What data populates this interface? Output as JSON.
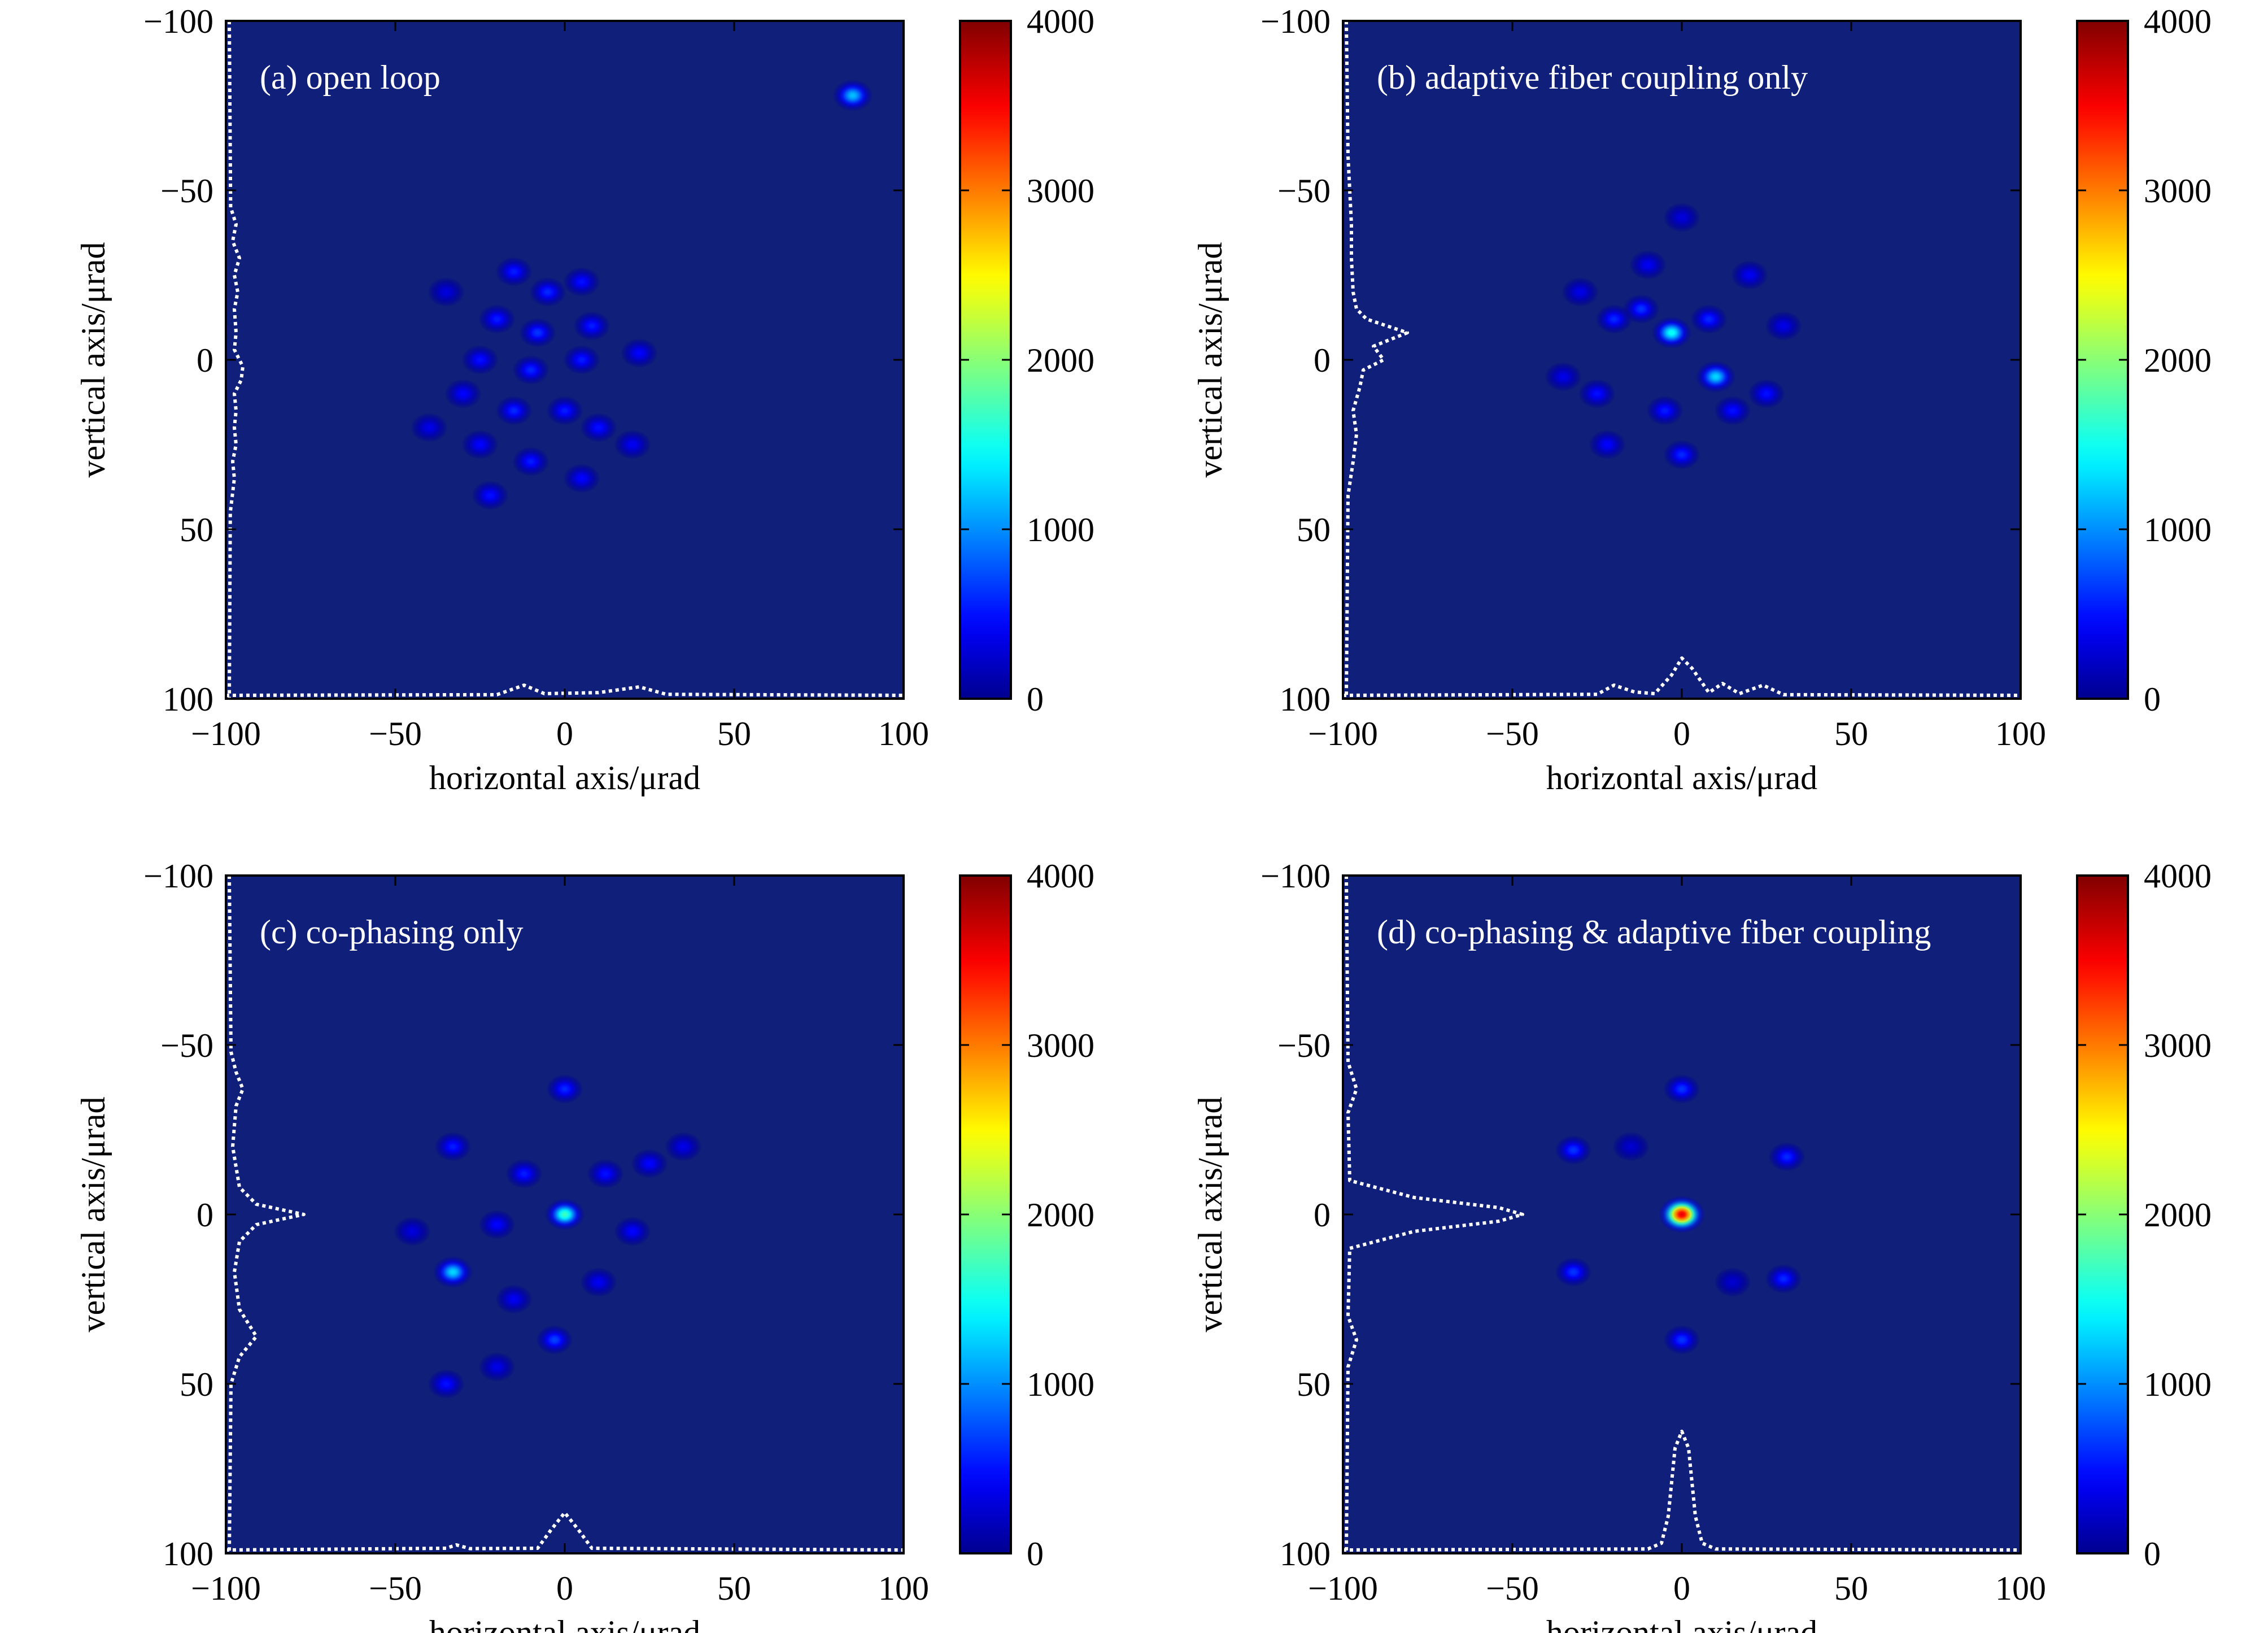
{
  "colormap": {
    "name": "jet",
    "stops": [
      "#00008f",
      "#0000ff",
      "#00ffff",
      "#ffff00",
      "#ff0000",
      "#800000"
    ],
    "background": "#10207a"
  },
  "profile_color": "#ffffff",
  "chart_data": [
    {
      "type": "heatmap",
      "title": "(a) open loop",
      "xlabel": "horizontal axis/μrad",
      "ylabel": "vertical axis/μrad",
      "xlim": [
        -100,
        100
      ],
      "ylim": [
        -100,
        100
      ],
      "y_direction": "down",
      "x_ticks": [
        -100,
        -50,
        0,
        50,
        100
      ],
      "x_tick_labels": [
        "−100",
        "−50",
        "0",
        "50",
        "100"
      ],
      "y_ticks": [
        -100,
        -50,
        0,
        50,
        100
      ],
      "y_tick_labels": [
        "−100",
        "−50",
        "0",
        "50",
        "100"
      ],
      "colorbar": {
        "range": [
          0,
          4000
        ],
        "ticks": [
          0,
          1000,
          2000,
          3000,
          4000
        ],
        "tick_labels": [
          "0",
          "1000",
          "2000",
          "3000",
          "4000"
        ]
      },
      "spots": [
        {
          "x": -15,
          "y": -26,
          "intensity": 550
        },
        {
          "x": -5,
          "y": -20,
          "intensity": 600
        },
        {
          "x": 5,
          "y": -23,
          "intensity": 500
        },
        {
          "x": -20,
          "y": -12,
          "intensity": 550
        },
        {
          "x": -8,
          "y": -8,
          "intensity": 650
        },
        {
          "x": 8,
          "y": -10,
          "intensity": 550
        },
        {
          "x": -25,
          "y": 0,
          "intensity": 500
        },
        {
          "x": -10,
          "y": 3,
          "intensity": 600
        },
        {
          "x": 5,
          "y": 0,
          "intensity": 550
        },
        {
          "x": 22,
          "y": -2,
          "intensity": 450
        },
        {
          "x": -30,
          "y": 10,
          "intensity": 450
        },
        {
          "x": -15,
          "y": 15,
          "intensity": 600
        },
        {
          "x": 0,
          "y": 15,
          "intensity": 550
        },
        {
          "x": 10,
          "y": 20,
          "intensity": 500
        },
        {
          "x": -25,
          "y": 25,
          "intensity": 450
        },
        {
          "x": -10,
          "y": 30,
          "intensity": 550
        },
        {
          "x": -22,
          "y": 40,
          "intensity": 500
        },
        {
          "x": 5,
          "y": 35,
          "intensity": 450
        },
        {
          "x": 20,
          "y": 25,
          "intensity": 400
        },
        {
          "x": -40,
          "y": 20,
          "intensity": 350
        },
        {
          "x": -35,
          "y": -20,
          "intensity": 300
        },
        {
          "x": 85,
          "y": -78,
          "intensity": 1200
        }
      ],
      "profile_x": [
        {
          "x": -100,
          "v": 0
        },
        {
          "x": -20,
          "v": 0.2
        },
        {
          "x": -12,
          "v": 3
        },
        {
          "x": -6,
          "v": 0.5
        },
        {
          "x": 10,
          "v": 0.8
        },
        {
          "x": 22,
          "v": 2.5
        },
        {
          "x": 30,
          "v": 0.3
        },
        {
          "x": 100,
          "v": 0
        }
      ],
      "profile_y": [
        {
          "y": -100,
          "v": 0
        },
        {
          "y": -45,
          "v": 0.4
        },
        {
          "y": -40,
          "v": 2
        },
        {
          "y": -35,
          "v": 1
        },
        {
          "y": -30,
          "v": 3
        },
        {
          "y": -25,
          "v": 1.5
        },
        {
          "y": -20,
          "v": 2.5
        },
        {
          "y": -15,
          "v": 1.5
        },
        {
          "y": -8,
          "v": 2
        },
        {
          "y": -3,
          "v": 1.5
        },
        {
          "y": 2,
          "v": 4
        },
        {
          "y": 6,
          "v": 3.5
        },
        {
          "y": 10,
          "v": 1.5
        },
        {
          "y": 15,
          "v": 2
        },
        {
          "y": 20,
          "v": 1.5
        },
        {
          "y": 25,
          "v": 2
        },
        {
          "y": 30,
          "v": 1
        },
        {
          "y": 35,
          "v": 1.5
        },
        {
          "y": 45,
          "v": 0.3
        },
        {
          "y": 100,
          "v": 0
        }
      ]
    },
    {
      "type": "heatmap",
      "title": "(b) adaptive fiber coupling only",
      "xlabel": "horizontal axis/μrad",
      "ylabel": "vertical axis/μrad",
      "xlim": [
        -100,
        100
      ],
      "ylim": [
        -100,
        100
      ],
      "y_direction": "down",
      "x_ticks": [
        -100,
        -50,
        0,
        50,
        100
      ],
      "x_tick_labels": [
        "−100",
        "−50",
        "0",
        "50",
        "100"
      ],
      "y_ticks": [
        -100,
        -50,
        0,
        50,
        100
      ],
      "y_tick_labels": [
        "−100",
        "−50",
        "0",
        "50",
        "100"
      ],
      "colorbar": {
        "range": [
          0,
          4000
        ],
        "ticks": [
          0,
          1000,
          2000,
          3000,
          4000
        ],
        "tick_labels": [
          "0",
          "1000",
          "2000",
          "3000",
          "4000"
        ]
      },
      "spots": [
        {
          "x": -3,
          "y": -8,
          "intensity": 1500
        },
        {
          "x": 10,
          "y": 5,
          "intensity": 1300
        },
        {
          "x": -12,
          "y": -15,
          "intensity": 650
        },
        {
          "x": 8,
          "y": -12,
          "intensity": 600
        },
        {
          "x": -20,
          "y": -12,
          "intensity": 600
        },
        {
          "x": -5,
          "y": 15,
          "intensity": 550
        },
        {
          "x": 15,
          "y": 15,
          "intensity": 500
        },
        {
          "x": -25,
          "y": 10,
          "intensity": 500
        },
        {
          "x": 0,
          "y": 28,
          "intensity": 600
        },
        {
          "x": -22,
          "y": 25,
          "intensity": 450
        },
        {
          "x": 25,
          "y": 10,
          "intensity": 500
        },
        {
          "x": 30,
          "y": -10,
          "intensity": 350
        },
        {
          "x": 20,
          "y": -25,
          "intensity": 400
        },
        {
          "x": -10,
          "y": -28,
          "intensity": 400
        },
        {
          "x": -30,
          "y": -20,
          "intensity": 350
        },
        {
          "x": 0,
          "y": -42,
          "intensity": 300
        },
        {
          "x": -35,
          "y": 5,
          "intensity": 350
        }
      ],
      "profile_x": [
        {
          "x": -100,
          "v": 0
        },
        {
          "x": -25,
          "v": 0.3
        },
        {
          "x": -20,
          "v": 3
        },
        {
          "x": -14,
          "v": 1
        },
        {
          "x": -8,
          "v": 0.5
        },
        {
          "x": -3,
          "v": 6
        },
        {
          "x": 0,
          "v": 11
        },
        {
          "x": 3,
          "v": 8
        },
        {
          "x": 8,
          "v": 0.8
        },
        {
          "x": 12,
          "v": 3.5
        },
        {
          "x": 17,
          "v": 0.5
        },
        {
          "x": 24,
          "v": 3
        },
        {
          "x": 30,
          "v": 0.2
        },
        {
          "x": 100,
          "v": 0
        }
      ],
      "profile_y": [
        {
          "y": -100,
          "v": 0
        },
        {
          "y": -60,
          "v": 0.5
        },
        {
          "y": -50,
          "v": 1
        },
        {
          "y": -40,
          "v": 1.5
        },
        {
          "y": -30,
          "v": 1.5
        },
        {
          "y": -20,
          "v": 2
        },
        {
          "y": -15,
          "v": 3
        },
        {
          "y": -12,
          "v": 6
        },
        {
          "y": -8,
          "v": 18
        },
        {
          "y": -4,
          "v": 8
        },
        {
          "y": 0,
          "v": 11
        },
        {
          "y": 3,
          "v": 5
        },
        {
          "y": 8,
          "v": 4
        },
        {
          "y": 15,
          "v": 2
        },
        {
          "y": 22,
          "v": 3
        },
        {
          "y": 30,
          "v": 2
        },
        {
          "y": 40,
          "v": 0.5
        },
        {
          "y": 100,
          "v": 0
        }
      ]
    },
    {
      "type": "heatmap",
      "title": "(c) co-phasing only",
      "xlabel": "horizontal axis/μrad",
      "ylabel": "vertical axis/μrad",
      "xlim": [
        -100,
        100
      ],
      "ylim": [
        -100,
        100
      ],
      "y_direction": "down",
      "x_ticks": [
        -100,
        -50,
        0,
        50,
        100
      ],
      "x_tick_labels": [
        "−100",
        "−50",
        "0",
        "50",
        "100"
      ],
      "y_ticks": [
        -100,
        -50,
        0,
        50,
        100
      ],
      "y_tick_labels": [
        "−100",
        "−50",
        "0",
        "50",
        "100"
      ],
      "colorbar": {
        "range": [
          0,
          4000
        ],
        "ticks": [
          0,
          1000,
          2000,
          3000,
          4000
        ],
        "tick_labels": [
          "0",
          "1000",
          "2000",
          "3000",
          "4000"
        ]
      },
      "spots": [
        {
          "x": 0,
          "y": 0,
          "intensity": 1700
        },
        {
          "x": -33,
          "y": 17,
          "intensity": 1300
        },
        {
          "x": -3,
          "y": 37,
          "intensity": 700
        },
        {
          "x": 0,
          "y": -37,
          "intensity": 600
        },
        {
          "x": -33,
          "y": -20,
          "intensity": 550
        },
        {
          "x": -12,
          "y": -12,
          "intensity": 550
        },
        {
          "x": 12,
          "y": -12,
          "intensity": 500
        },
        {
          "x": -20,
          "y": 3,
          "intensity": 450
        },
        {
          "x": 20,
          "y": 5,
          "intensity": 450
        },
        {
          "x": 25,
          "y": -15,
          "intensity": 450
        },
        {
          "x": -35,
          "y": 50,
          "intensity": 500
        },
        {
          "x": -15,
          "y": 25,
          "intensity": 400
        },
        {
          "x": 10,
          "y": 20,
          "intensity": 400
        },
        {
          "x": -45,
          "y": 5,
          "intensity": 300
        },
        {
          "x": 35,
          "y": -20,
          "intensity": 350
        },
        {
          "x": -20,
          "y": 45,
          "intensity": 350
        }
      ],
      "profile_x": [
        {
          "x": -100,
          "v": 0
        },
        {
          "x": -35,
          "v": 0.5
        },
        {
          "x": -32,
          "v": 1.5
        },
        {
          "x": -28,
          "v": 0.4
        },
        {
          "x": -8,
          "v": 0.5
        },
        {
          "x": -4,
          "v": 6
        },
        {
          "x": 0,
          "v": 11
        },
        {
          "x": 4,
          "v": 6
        },
        {
          "x": 8,
          "v": 0.5
        },
        {
          "x": 100,
          "v": 0
        }
      ],
      "profile_y": [
        {
          "y": -100,
          "v": 0
        },
        {
          "y": -48,
          "v": 0.5
        },
        {
          "y": -42,
          "v": 2
        },
        {
          "y": -37,
          "v": 4
        },
        {
          "y": -32,
          "v": 2
        },
        {
          "y": -20,
          "v": 1
        },
        {
          "y": -8,
          "v": 3
        },
        {
          "y": -3,
          "v": 8
        },
        {
          "y": 0,
          "v": 22
        },
        {
          "y": 3,
          "v": 8
        },
        {
          "y": 8,
          "v": 3
        },
        {
          "y": 17,
          "v": 1.5
        },
        {
          "y": 28,
          "v": 3
        },
        {
          "y": 36,
          "v": 8
        },
        {
          "y": 42,
          "v": 3
        },
        {
          "y": 50,
          "v": 0.5
        },
        {
          "y": 100,
          "v": 0
        }
      ]
    },
    {
      "type": "heatmap",
      "title": "(d) co-phasing & adaptive fiber coupling",
      "xlabel": "horizontal axis/μrad",
      "ylabel": "vertical axis/μrad",
      "xlim": [
        -100,
        100
      ],
      "ylim": [
        -100,
        100
      ],
      "y_direction": "down",
      "x_ticks": [
        -100,
        -50,
        0,
        50,
        100
      ],
      "x_tick_labels": [
        "−100",
        "−50",
        "0",
        "50",
        "100"
      ],
      "y_ticks": [
        -100,
        -50,
        0,
        50,
        100
      ],
      "y_tick_labels": [
        "−100",
        "−50",
        "0",
        "50",
        "100"
      ],
      "colorbar": {
        "range": [
          0,
          4000
        ],
        "ticks": [
          0,
          1000,
          2000,
          3000,
          4000
        ],
        "tick_labels": [
          "0",
          "1000",
          "2000",
          "3000",
          "4000"
        ]
      },
      "spots": [
        {
          "x": 0,
          "y": 0,
          "intensity": 3600
        },
        {
          "x": 0,
          "y": -37,
          "intensity": 650
        },
        {
          "x": 0,
          "y": 37,
          "intensity": 650
        },
        {
          "x": -32,
          "y": -19,
          "intensity": 650
        },
        {
          "x": 31,
          "y": -17,
          "intensity": 600
        },
        {
          "x": -32,
          "y": 17,
          "intensity": 650
        },
        {
          "x": 30,
          "y": 19,
          "intensity": 600
        },
        {
          "x": -15,
          "y": -20,
          "intensity": 250
        },
        {
          "x": 15,
          "y": 20,
          "intensity": 250
        }
      ],
      "profile_x": [
        {
          "x": -100,
          "v": 0
        },
        {
          "x": -10,
          "v": 0.3
        },
        {
          "x": -6,
          "v": 2
        },
        {
          "x": -4,
          "v": 10
        },
        {
          "x": -2,
          "v": 30
        },
        {
          "x": 0,
          "v": 35
        },
        {
          "x": 2,
          "v": 30
        },
        {
          "x": 4,
          "v": 10
        },
        {
          "x": 6,
          "v": 2
        },
        {
          "x": 10,
          "v": 0.3
        },
        {
          "x": 100,
          "v": 0
        }
      ],
      "profile_y": [
        {
          "y": -100,
          "v": 0
        },
        {
          "y": -45,
          "v": 0.5
        },
        {
          "y": -37,
          "v": 3
        },
        {
          "y": -30,
          "v": 0.5
        },
        {
          "y": -10,
          "v": 1
        },
        {
          "y": -5,
          "v": 20
        },
        {
          "y": -2,
          "v": 45
        },
        {
          "y": 0,
          "v": 52
        },
        {
          "y": 2,
          "v": 45
        },
        {
          "y": 5,
          "v": 20
        },
        {
          "y": 10,
          "v": 1
        },
        {
          "y": 30,
          "v": 0.5
        },
        {
          "y": 37,
          "v": 3
        },
        {
          "y": 45,
          "v": 0.5
        },
        {
          "y": 100,
          "v": 0
        }
      ]
    }
  ]
}
